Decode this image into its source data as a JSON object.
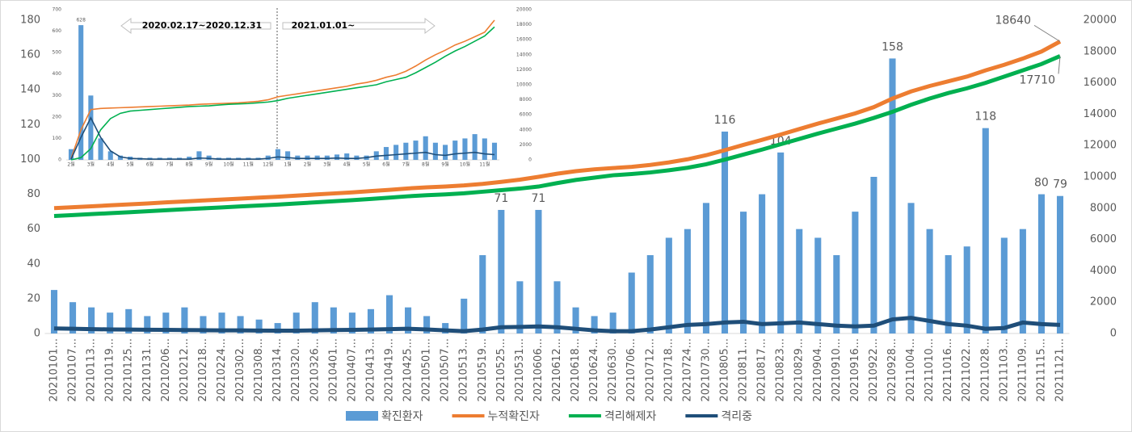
{
  "chart_data": [
    {
      "type": "combo",
      "categories": [
        "20210101...",
        "20210107...",
        "20210113...",
        "20210119...",
        "20210125...",
        "20210131...",
        "20210206...",
        "20210212...",
        "20210218...",
        "20210224...",
        "20210302...",
        "20210308...",
        "20210314...",
        "20210320...",
        "20210326...",
        "20210401...",
        "20210407...",
        "20210413...",
        "20210419...",
        "20210425...",
        "20210501...",
        "20210507...",
        "20210513...",
        "20210519...",
        "20210525...",
        "20210531...",
        "20210606...",
        "20210612...",
        "20210618...",
        "20210624...",
        "20210630...",
        "20210706...",
        "20210712...",
        "20210718...",
        "20210724...",
        "20210730...",
        "20210805...",
        "20210811...",
        "20210817...",
        "20210823...",
        "20210829...",
        "20210904...",
        "20210910...",
        "20210916...",
        "20210922...",
        "20210928...",
        "20211004...",
        "20211010...",
        "20211016...",
        "20211022...",
        "20211028...",
        "20211103...",
        "20211109...",
        "20211115...",
        "20211121..."
      ],
      "series": [
        {
          "name": "확진환자",
          "type": "bar",
          "color": "#5b9bd5",
          "values": [
            25,
            18,
            15,
            12,
            14,
            10,
            12,
            15,
            10,
            12,
            10,
            8,
            6,
            12,
            18,
            15,
            12,
            14,
            22,
            15,
            10,
            6,
            20,
            45,
            71,
            30,
            71,
            30,
            15,
            10,
            12,
            35,
            45,
            55,
            60,
            75,
            116,
            70,
            80,
            104,
            60,
            55,
            45,
            70,
            90,
            158,
            75,
            60,
            45,
            50,
            118,
            55,
            60,
            80,
            79
          ],
          "value_labels": [
            null,
            null,
            null,
            null,
            null,
            null,
            null,
            null,
            null,
            null,
            null,
            null,
            null,
            null,
            null,
            null,
            null,
            null,
            null,
            null,
            null,
            null,
            null,
            null,
            "71",
            null,
            "71",
            null,
            null,
            null,
            null,
            null,
            null,
            null,
            null,
            null,
            "116",
            null,
            null,
            "104",
            null,
            null,
            null,
            null,
            null,
            "158",
            null,
            null,
            null,
            null,
            "118",
            null,
            null,
            "80",
            "79"
          ]
        },
        {
          "name": "누적확진자",
          "type": "line",
          "axis": "y2",
          "color": "#ed7d31",
          "values": [
            8000,
            8060,
            8120,
            8180,
            8240,
            8300,
            8370,
            8430,
            8490,
            8550,
            8610,
            8670,
            8730,
            8800,
            8870,
            8940,
            9010,
            9090,
            9170,
            9260,
            9330,
            9380,
            9450,
            9550,
            9680,
            9820,
            10000,
            10200,
            10360,
            10480,
            10560,
            10640,
            10760,
            10920,
            11120,
            11380,
            11700,
            12040,
            12360,
            12700,
            13050,
            13400,
            13720,
            14050,
            14450,
            15000,
            15450,
            15800,
            16100,
            16400,
            16800,
            17150,
            17550,
            18000,
            18640
          ],
          "value_labels": [
            null,
            null,
            null,
            null,
            null,
            null,
            null,
            null,
            null,
            null,
            null,
            null,
            null,
            null,
            null,
            null,
            null,
            null,
            null,
            null,
            null,
            null,
            null,
            null,
            null,
            null,
            null,
            null,
            null,
            null,
            null,
            null,
            null,
            null,
            null,
            null,
            null,
            null,
            null,
            null,
            null,
            null,
            null,
            null,
            null,
            null,
            null,
            null,
            null,
            null,
            null,
            null,
            null,
            null,
            "18640"
          ]
        },
        {
          "name": "격리해제자",
          "type": "line",
          "axis": "y2",
          "color": "#00b050",
          "values": [
            7500,
            7560,
            7620,
            7680,
            7740,
            7800,
            7870,
            7930,
            7990,
            8050,
            8110,
            8170,
            8230,
            8300,
            8370,
            8440,
            8510,
            8590,
            8670,
            8760,
            8830,
            8880,
            8950,
            9050,
            9150,
            9250,
            9380,
            9600,
            9800,
            9950,
            10100,
            10180,
            10280,
            10420,
            10580,
            10800,
            11100,
            11420,
            11740,
            12080,
            12420,
            12760,
            13080,
            13400,
            13760,
            14150,
            14600,
            15000,
            15350,
            15650,
            16000,
            16400,
            16800,
            17200,
            17710
          ],
          "value_labels": [
            null,
            null,
            null,
            null,
            null,
            null,
            null,
            null,
            null,
            null,
            null,
            null,
            null,
            null,
            null,
            null,
            null,
            null,
            null,
            null,
            null,
            null,
            null,
            null,
            null,
            null,
            null,
            null,
            null,
            null,
            null,
            null,
            null,
            null,
            null,
            null,
            null,
            null,
            null,
            null,
            null,
            null,
            null,
            null,
            null,
            null,
            null,
            null,
            null,
            null,
            null,
            null,
            null,
            null,
            "17710"
          ]
        },
        {
          "name": "격리중",
          "type": "line",
          "axis": "y2",
          "color": "#1f4e79",
          "values": [
            320,
            300,
            280,
            260,
            250,
            240,
            230,
            220,
            210,
            200,
            200,
            190,
            180,
            180,
            200,
            220,
            230,
            250,
            280,
            300,
            260,
            200,
            150,
            250,
            400,
            420,
            450,
            400,
            300,
            200,
            150,
            150,
            250,
            400,
            550,
            600,
            700,
            750,
            600,
            650,
            700,
            600,
            500,
            450,
            500,
            900,
            1000,
            800,
            600,
            500,
            300,
            350,
            700,
            600,
            550
          ]
        }
      ],
      "ylim": [
        0,
        180
      ],
      "yticks": [
        0,
        20,
        40,
        60,
        80,
        100,
        120,
        140,
        160,
        180
      ],
      "y2lim": [
        0,
        20000
      ],
      "y2ticks": [
        0,
        2000,
        4000,
        6000,
        8000,
        10000,
        12000,
        14000,
        16000,
        18000,
        20000
      ],
      "legend": "bottom"
    },
    {
      "type": "combo",
      "annotations": [
        "2020.02.17~2020.12.31",
        "2021.01.01~"
      ],
      "categories": [
        "2월",
        null,
        "3월",
        null,
        "4월",
        null,
        "5월",
        null,
        "6월",
        null,
        "7월",
        null,
        "8월",
        null,
        "9월",
        null,
        "10월",
        null,
        "11월",
        null,
        "12월",
        null,
        "1월",
        null,
        "2월",
        null,
        "3월",
        null,
        "4월",
        null,
        "5월",
        null,
        "6월",
        null,
        "7월",
        null,
        "8월",
        null,
        "9월",
        null,
        "10월",
        null,
        "11월",
        null
      ],
      "series": [
        {
          "name": "확진환자",
          "type": "bar",
          "color": "#5b9bd5",
          "values": [
            50,
            628,
            300,
            100,
            40,
            20,
            15,
            10,
            10,
            10,
            10,
            10,
            15,
            40,
            20,
            10,
            10,
            10,
            10,
            10,
            20,
            50,
            40,
            20,
            20,
            20,
            20,
            25,
            30,
            20,
            20,
            40,
            60,
            70,
            80,
            90,
            110,
            80,
            70,
            90,
            100,
            120,
            100,
            80
          ],
          "value_labels": [
            null,
            "628",
            null,
            null,
            null,
            null,
            null,
            null,
            null,
            null,
            null,
            null,
            null,
            null,
            null,
            null,
            null,
            null,
            null,
            null,
            null,
            null,
            null,
            null,
            null,
            null,
            null,
            null,
            null,
            null,
            null,
            null,
            null,
            null,
            null,
            null,
            null,
            null,
            null,
            null,
            null,
            null,
            null,
            null
          ]
        },
        {
          "name": "누적확진자",
          "type": "line",
          "axis": "y2",
          "color": "#ed7d31",
          "values": [
            200,
            4000,
            6700,
            6850,
            6900,
            6950,
            7000,
            7050,
            7100,
            7150,
            7200,
            7250,
            7300,
            7400,
            7450,
            7500,
            7550,
            7600,
            7700,
            7800,
            8000,
            8400,
            8600,
            8800,
            9000,
            9200,
            9400,
            9600,
            9800,
            10100,
            10300,
            10600,
            11000,
            11300,
            11800,
            12500,
            13300,
            14000,
            14600,
            15300,
            15800,
            16400,
            17000,
            18600
          ]
        },
        {
          "name": "격리해제자",
          "type": "line",
          "axis": "y2",
          "color": "#00b050",
          "values": [
            0,
            300,
            1500,
            4000,
            5500,
            6200,
            6500,
            6600,
            6700,
            6800,
            6900,
            7000,
            7100,
            7150,
            7200,
            7300,
            7400,
            7450,
            7500,
            7600,
            7700,
            7900,
            8200,
            8400,
            8600,
            8800,
            9000,
            9200,
            9400,
            9600,
            9800,
            10000,
            10400,
            10700,
            11000,
            11600,
            12300,
            13000,
            13800,
            14500,
            15100,
            15800,
            16500,
            17700
          ]
        },
        {
          "name": "격리중",
          "type": "line",
          "axis": "y2",
          "color": "#1f4e79",
          "values": [
            100,
            3000,
            5600,
            3000,
            1200,
            400,
            200,
            150,
            100,
            100,
            100,
            100,
            100,
            250,
            200,
            100,
            100,
            100,
            100,
            100,
            200,
            400,
            300,
            200,
            200,
            200,
            200,
            250,
            200,
            200,
            300,
            500,
            600,
            700,
            800,
            900,
            1000,
            700,
            600,
            800,
            900,
            1000,
            800,
            700
          ]
        }
      ],
      "ylim": [
        0,
        700
      ],
      "yticks": [
        0,
        100,
        200,
        300,
        400,
        500,
        600,
        700
      ],
      "y2lim": [
        0,
        20000
      ],
      "y2ticks": [
        0,
        2000,
        4000,
        6000,
        8000,
        10000,
        12000,
        14000,
        16000,
        18000,
        20000
      ]
    }
  ]
}
